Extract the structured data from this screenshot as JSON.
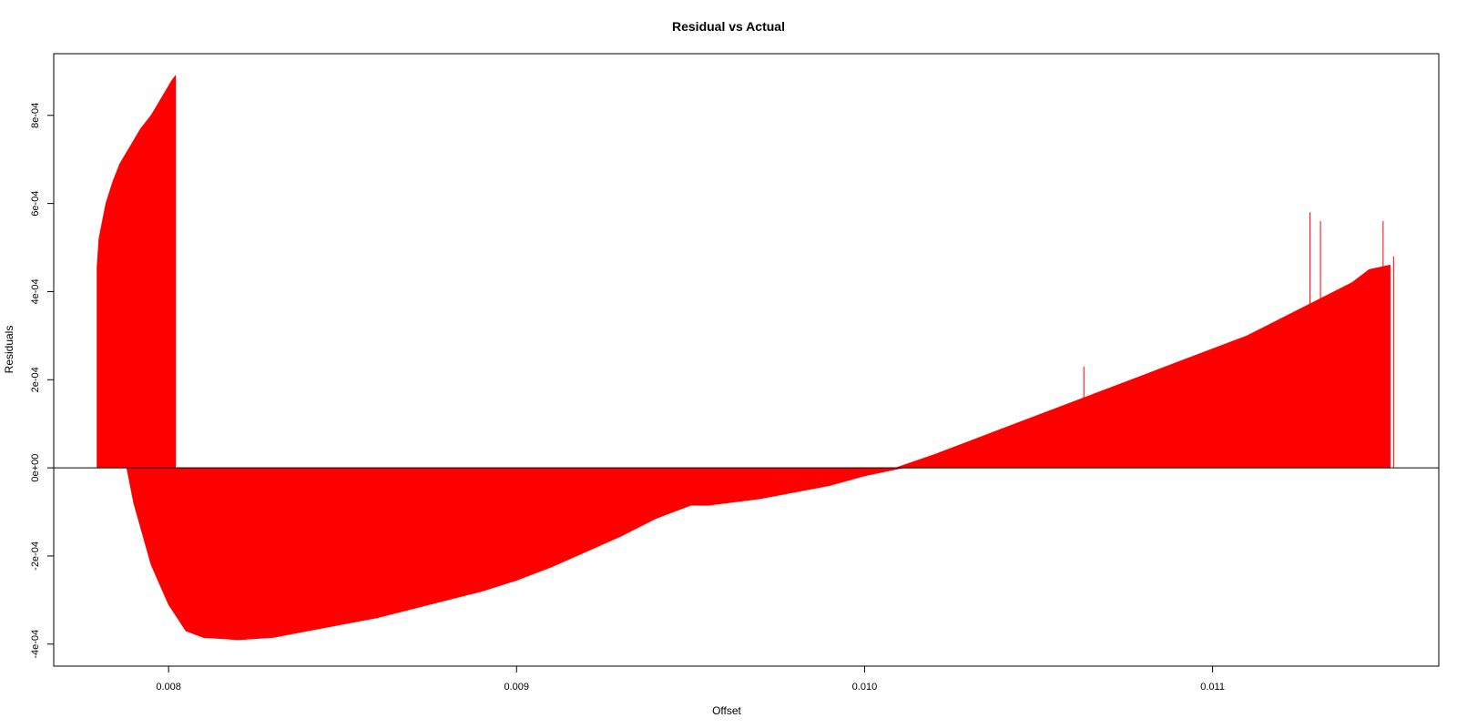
{
  "chart_data": {
    "type": "bar",
    "title": "Residual vs Actual",
    "xlabel": "Offset",
    "ylabel": "Residuals",
    "xlim": [
      0.00767,
      0.01165
    ],
    "ylim": [
      -0.00045,
      0.00094
    ],
    "x_ticks": [
      {
        "value": 0.008,
        "label": "0.008"
      },
      {
        "value": 0.009,
        "label": "0.009"
      },
      {
        "value": 0.01,
        "label": "0.010"
      },
      {
        "value": 0.011,
        "label": "0.011"
      }
    ],
    "y_ticks": [
      {
        "value": -0.0004,
        "label": "-4e-04"
      },
      {
        "value": -0.0002,
        "label": "-2e-04"
      },
      {
        "value": 0.0,
        "label": "0e+00"
      },
      {
        "value": 0.0002,
        "label": "2e-04"
      },
      {
        "value": 0.0004,
        "label": "4e-04"
      },
      {
        "value": 0.0006,
        "label": "6e-04"
      },
      {
        "value": 0.0008,
        "label": "8e-04"
      }
    ],
    "reference_line": {
      "y": 0.0,
      "color": "#000000"
    },
    "series": [
      {
        "color": "#ff0000",
        "segments": [
          {
            "x": [
              0.007795,
              0.0078,
              0.00781,
              0.00782,
              0.00784,
              0.00786,
              0.00789,
              0.00792,
              0.00795,
              0.00798,
              0.00801,
              0.00802
            ],
            "y": [
              0.00046,
              0.00052,
              0.00056,
              0.0006,
              0.00065,
              0.00069,
              0.00073,
              0.00077,
              0.0008,
              0.00084,
              0.00088,
              0.00089
            ]
          },
          {
            "x": [
              0.00788,
              0.0079,
              0.00795,
              0.008,
              0.00805,
              0.0081,
              0.0082,
              0.0083,
              0.0084,
              0.0085,
              0.0086,
              0.0087,
              0.0088,
              0.0089,
              0.009,
              0.0091,
              0.0092,
              0.0093,
              0.0094,
              0.0095,
              0.00955,
              0.0096,
              0.0097,
              0.0098,
              0.0099,
              0.01,
              0.01011
            ],
            "y": [
              0.0,
              -8e-05,
              -0.00022,
              -0.00031,
              -0.00037,
              -0.000385,
              -0.00039,
              -0.000385,
              -0.00037,
              -0.000355,
              -0.00034,
              -0.00032,
              -0.0003,
              -0.00028,
              -0.000255,
              -0.000225,
              -0.00019,
              -0.000155,
              -0.000115,
              -8.5e-05,
              -8.5e-05,
              -8e-05,
              -7e-05,
              -5.5e-05,
              -4e-05,
              -1.8e-05,
              0.0
            ]
          },
          {
            "x": [
              0.01009,
              0.0102,
              0.0103,
              0.0104,
              0.0105,
              0.0106,
              0.0107,
              0.0108,
              0.0109,
              0.011,
              0.0111,
              0.0112,
              0.0113,
              0.0114,
              0.01145,
              0.01151
            ],
            "y": [
              0.0,
              3e-05,
              6e-05,
              9e-05,
              0.00012,
              0.00015,
              0.00018,
              0.00021,
              0.00024,
              0.00027,
              0.0003,
              0.00034,
              0.00038,
              0.00042,
              0.00045,
              0.00046
            ]
          }
        ],
        "spikes": [
          {
            "x": 0.007795,
            "y": 0.00046
          },
          {
            "x": 0.01063,
            "y": 0.00023
          },
          {
            "x": 0.01128,
            "y": 0.00058
          },
          {
            "x": 0.01131,
            "y": 0.00056
          },
          {
            "x": 0.01149,
            "y": 0.00056
          },
          {
            "x": 0.01152,
            "y": 0.00048
          }
        ]
      }
    ]
  }
}
